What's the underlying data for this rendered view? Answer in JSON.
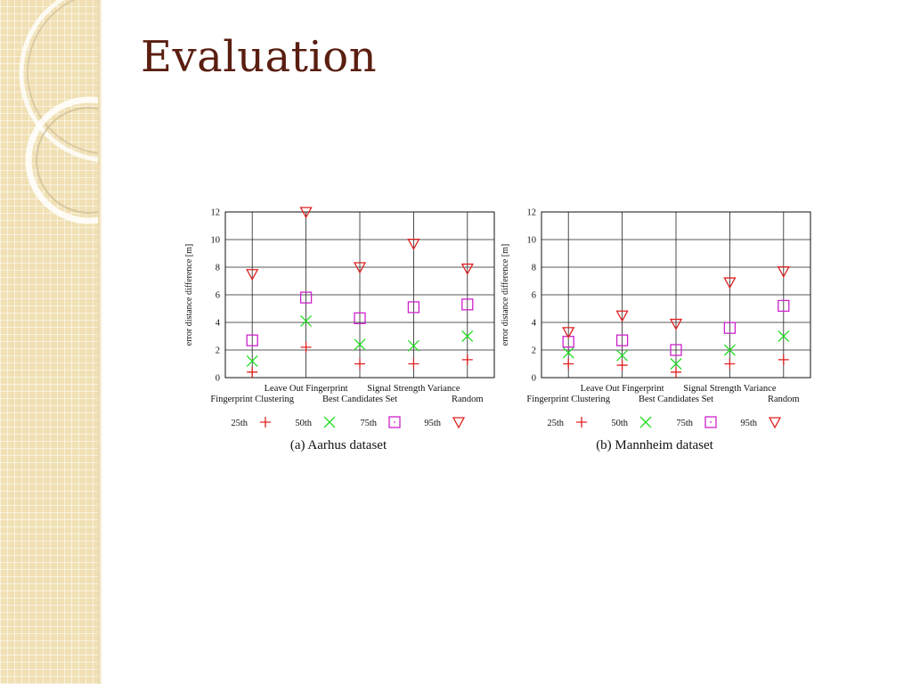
{
  "slide": {
    "title": "Evaluation",
    "colors": {
      "title": "#5a1e10",
      "sidebar": "#f0e0b4"
    }
  },
  "chart_data": [
    {
      "type": "scatter",
      "caption": "(a) Aarhus dataset",
      "ylabel": "error distance difference [m]",
      "ylim": [
        0,
        12
      ],
      "yticks": [
        0,
        2,
        4,
        6,
        8,
        10,
        12
      ],
      "categories": [
        "Fingerprint Clustering",
        "Leave Out Fingerprint",
        "Best Candidates Set",
        "Signal Strength Variance",
        "Random"
      ],
      "grid": true,
      "legend": "bottom",
      "series": [
        {
          "name": "25th",
          "marker": "plus",
          "color": "#e02020",
          "values": [
            0.4,
            2.2,
            1.0,
            1.0,
            1.3
          ]
        },
        {
          "name": "50th",
          "marker": "cross",
          "color": "#22dd22",
          "values": [
            1.2,
            4.1,
            2.4,
            2.3,
            3.0
          ]
        },
        {
          "name": "75th",
          "marker": "square",
          "color": "#cc22cc",
          "values": [
            2.7,
            5.8,
            4.3,
            5.1,
            5.3
          ]
        },
        {
          "name": "95th",
          "marker": "triangle",
          "color": "#e02020",
          "values": [
            7.5,
            12.0,
            8.0,
            9.7,
            7.9
          ]
        }
      ]
    },
    {
      "type": "scatter",
      "caption": "(b) Mannheim dataset",
      "ylabel": "error distance difference [m]",
      "ylim": [
        0,
        12
      ],
      "yticks": [
        0,
        2,
        4,
        6,
        8,
        10,
        12
      ],
      "categories": [
        "Fingerprint Clustering",
        "Leave Out Fingerprint",
        "Best Candidates Set",
        "Signal Strength Variance",
        "Random"
      ],
      "grid": true,
      "legend": "bottom",
      "series": [
        {
          "name": "25th",
          "marker": "plus",
          "color": "#e02020",
          "values": [
            1.0,
            0.9,
            0.4,
            1.0,
            1.3
          ]
        },
        {
          "name": "50th",
          "marker": "cross",
          "color": "#22dd22",
          "values": [
            1.8,
            1.6,
            1.0,
            2.0,
            3.0
          ]
        },
        {
          "name": "75th",
          "marker": "square",
          "color": "#cc22cc",
          "values": [
            2.6,
            2.7,
            2.0,
            3.6,
            5.2
          ]
        },
        {
          "name": "95th",
          "marker": "triangle",
          "color": "#e02020",
          "values": [
            3.3,
            4.5,
            3.9,
            6.9,
            7.7
          ]
        }
      ]
    }
  ]
}
